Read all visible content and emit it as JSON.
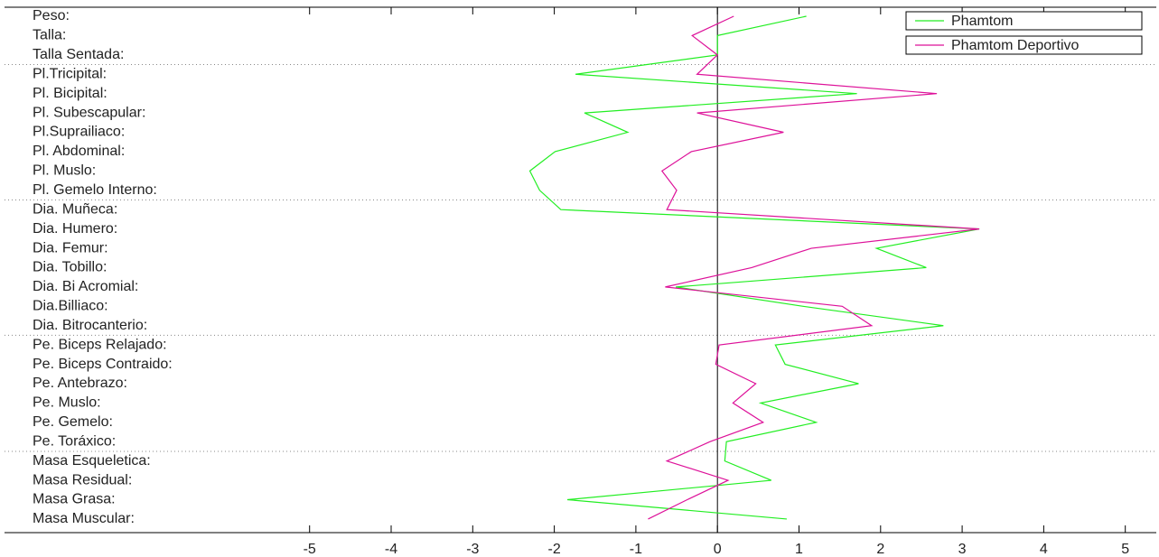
{
  "chart_data": {
    "type": "line",
    "orientation": "horizontal",
    "categories": [
      "Peso:",
      "Talla:",
      "Talla Sentada:",
      "Pl.Tricipital:",
      "Pl. Bicipital:",
      "Pl. Subescapular:",
      "Pl.Suprailiaco:",
      "Pl. Abdominal:",
      "Pl. Muslo:",
      "Pl. Gemelo Interno:",
      "Dia. Muñeca:",
      "Dia. Humero:",
      "Dia. Femur:",
      "Dia. Tobillo:",
      "Dia. Bi Acromial:",
      "Dia.Billiaco:",
      "Dia. Bitrocanterio:",
      "Pe. Biceps Relajado:",
      "Pe. Biceps Contraido:",
      "Pe. Antebrazo:",
      "Pe. Muslo:",
      "Pe. Gemelo:",
      "Pe. Toráxico:",
      "Masa Esqueletica:",
      "Masa Residual:",
      "Masa Grasa:",
      "Masa Muscular:"
    ],
    "series": [
      {
        "name": "Phamtom",
        "color": "#22ee22",
        "values": [
          1.09,
          0,
          0,
          -1.74,
          1.71,
          -1.63,
          -1.1,
          -1.99,
          -2.3,
          -2.18,
          -1.92,
          3.21,
          1.95,
          2.56,
          -0.51,
          1.05,
          2.77,
          0.71,
          0.83,
          1.73,
          0.53,
          1.21,
          0.11,
          0.09,
          0.66,
          -1.84,
          0.85
        ]
      },
      {
        "name": "Phamtom Deportivo",
        "color": "#dd1199",
        "values": [
          0.2,
          -0.31,
          0,
          -0.25,
          2.69,
          -0.25,
          0.81,
          -0.32,
          -0.68,
          -0.5,
          -0.62,
          3.21,
          1.15,
          0.42,
          -0.64,
          1.53,
          1.89,
          0.02,
          -0.02,
          0.47,
          0.19,
          0.56,
          -0.09,
          -0.62,
          0.13,
          -0.37,
          -0.85
        ]
      }
    ],
    "xlim": [
      -8.74,
      5.38
    ],
    "xticks": [
      -5,
      -4,
      -3,
      -2,
      -1,
      0,
      1,
      2,
      3,
      4,
      5
    ],
    "legend": "upper right"
  }
}
